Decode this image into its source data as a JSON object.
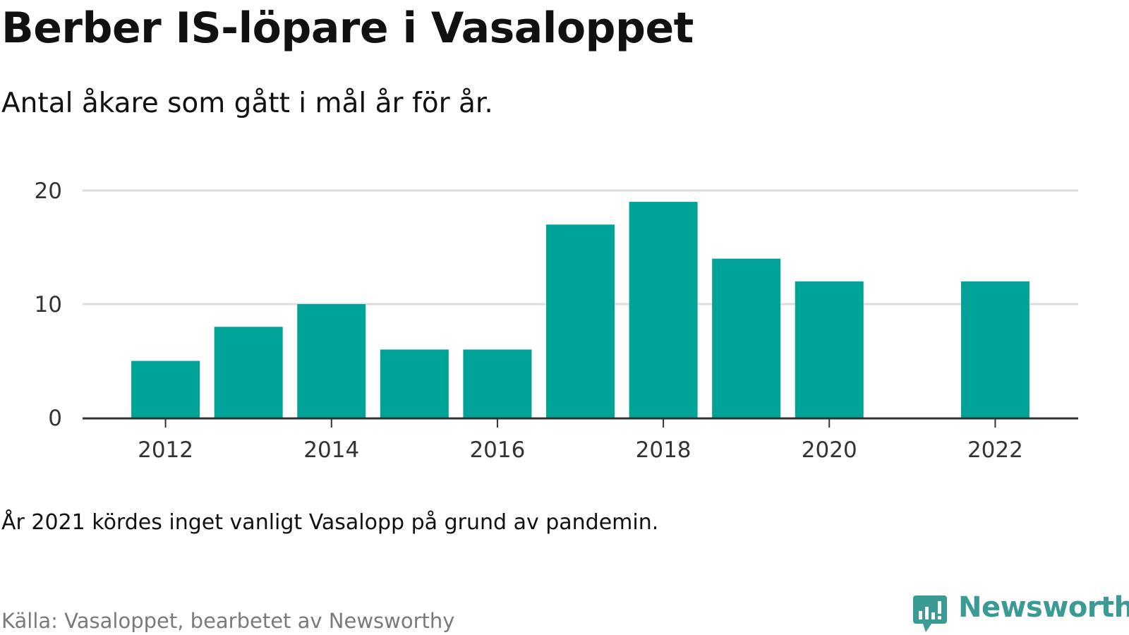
{
  "title": "Berber IS-löpare i Vasaloppet",
  "subtitle": "Antal åkare som gått i mål år för år.",
  "note": "År 2021 kördes inget vanligt Vasalopp på grund av pandemin.",
  "source": "Källa: Vasaloppet, bearbetet av Newsworthy",
  "brand": {
    "name": "Newsworthy",
    "icon": "newsworthy-logo-icon",
    "color": "#3a9b94"
  },
  "colors": {
    "bar": "#00a398",
    "grid": "#dddddd",
    "baseline": "#333333"
  },
  "chart_data": {
    "type": "bar",
    "title": "Berber IS-löpare i Vasaloppet",
    "subtitle": "Antal åkare som gått i mål år för år.",
    "categories": [
      2012,
      2013,
      2014,
      2015,
      2016,
      2017,
      2018,
      2019,
      2020,
      2022
    ],
    "values": [
      5,
      8,
      10,
      6,
      6,
      17,
      19,
      14,
      12,
      12
    ],
    "x_ticks": [
      2012,
      2014,
      2016,
      2018,
      2020,
      2022
    ],
    "xlim": [
      2011,
      2023
    ],
    "y_ticks": [
      0,
      10,
      20
    ],
    "ylim": [
      0,
      20
    ],
    "xlabel": "",
    "ylabel": "",
    "grid": true
  }
}
